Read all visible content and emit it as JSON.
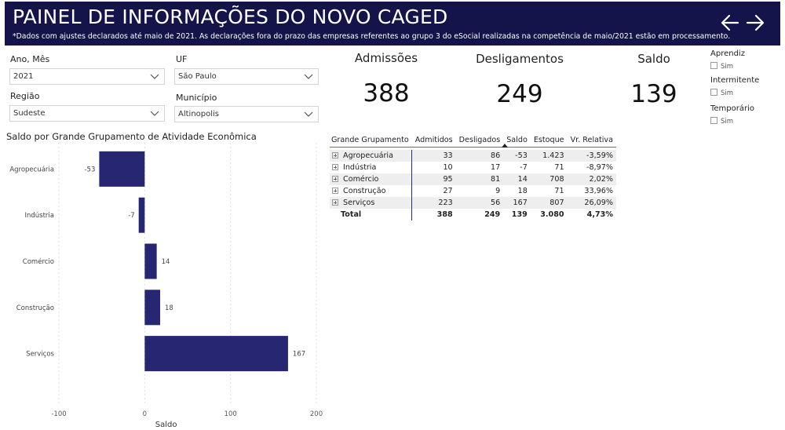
{
  "header": {
    "title": "PAINEL DE INFORMAÇÕES DO NOVO CAGED",
    "subtitle": "*Dados com ajustes declarados até maio de 2021. As declarações fora do prazo das empresas referentes ao grupo 3 do eSocial realizadas na competência de maio/2021 estão em processamento."
  },
  "filters": {
    "ano_mes": {
      "label": "Ano, Mês",
      "value": "2021"
    },
    "uf": {
      "label": "UF",
      "value": "São Paulo"
    },
    "regiao": {
      "label": "Região",
      "value": "Sudeste"
    },
    "municipio": {
      "label": "Município",
      "value": "Altinopolis"
    }
  },
  "kpis": {
    "admissoes": {
      "label": "Admissões",
      "value": "388"
    },
    "desligamentos": {
      "label": "Desligamentos",
      "value": "249"
    },
    "saldo": {
      "label": "Saldo",
      "value": "139"
    }
  },
  "slicers": [
    {
      "title": "Aprendiz",
      "option": "Sim"
    },
    {
      "title": "Intermitente",
      "option": "Sim"
    },
    {
      "title": "Temporário",
      "option": "Sim"
    }
  ],
  "icons": {
    "back": "arrow-left-icon",
    "forward": "arrow-right-icon",
    "expand": "expand-plus-icon",
    "dropdown": "chevron-down-icon"
  },
  "colors": {
    "header_bg": "#14144a",
    "bar": "#262673"
  },
  "chart_data": {
    "type": "bar",
    "orientation": "horizontal",
    "title": "Saldo por Grande Grupamento de Atividade Econômica",
    "xlabel": "Saldo",
    "categories": [
      "Agropecuária",
      "Indústria",
      "Comércio",
      "Construção",
      "Serviços"
    ],
    "values": [
      -53,
      -7,
      14,
      18,
      167
    ],
    "xlim": [
      -100,
      200
    ],
    "xticks": [
      -100,
      0,
      100,
      200
    ],
    "grid": true
  },
  "table": {
    "columns": [
      "Grande Grupamento",
      "Admitidos",
      "Desligados",
      "Saldo",
      "Estoque",
      "Vr. Relativa"
    ],
    "rows": [
      {
        "grupo": "Agropecuária",
        "admitidos": "33",
        "desligados": "86",
        "saldo": "-53",
        "estoque": "1.423",
        "vr": "-3,59%"
      },
      {
        "grupo": "Indústria",
        "admitidos": "10",
        "desligados": "17",
        "saldo": "-7",
        "estoque": "71",
        "vr": "-8,97%"
      },
      {
        "grupo": "Comércio",
        "admitidos": "95",
        "desligados": "81",
        "saldo": "14",
        "estoque": "708",
        "vr": "2,02%"
      },
      {
        "grupo": "Construção",
        "admitidos": "27",
        "desligados": "9",
        "saldo": "18",
        "estoque": "71",
        "vr": "33,96%"
      },
      {
        "grupo": "Serviços",
        "admitidos": "223",
        "desligados": "56",
        "saldo": "167",
        "estoque": "807",
        "vr": "26,09%"
      }
    ],
    "total": {
      "grupo": "Total",
      "admitidos": "388",
      "desligados": "249",
      "saldo": "139",
      "estoque": "3.080",
      "vr": "4,73%"
    }
  }
}
